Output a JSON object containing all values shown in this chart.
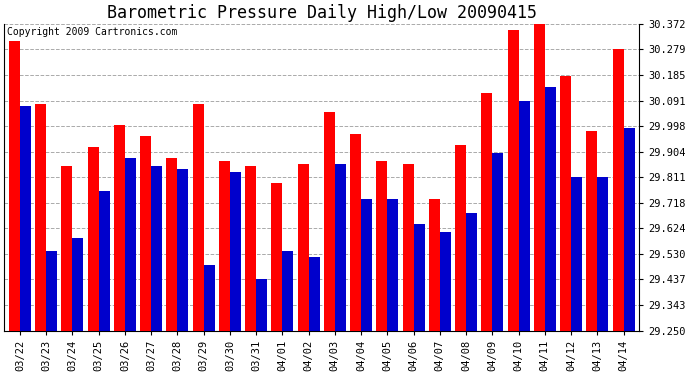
{
  "title": "Barometric Pressure Daily High/Low 20090415",
  "copyright": "Copyright 2009 Cartronics.com",
  "categories": [
    "03/22",
    "03/23",
    "03/24",
    "03/25",
    "03/26",
    "03/27",
    "03/28",
    "03/29",
    "03/30",
    "03/31",
    "04/01",
    "04/02",
    "04/03",
    "04/04",
    "04/05",
    "04/06",
    "04/07",
    "04/08",
    "04/09",
    "04/10",
    "04/11",
    "04/12",
    "04/13",
    "04/14"
  ],
  "highs": [
    30.31,
    30.08,
    29.85,
    29.92,
    30.0,
    29.96,
    29.88,
    30.08,
    29.87,
    29.85,
    29.79,
    29.86,
    30.05,
    29.97,
    29.87,
    29.86,
    29.73,
    29.93,
    30.12,
    30.35,
    30.42,
    30.18,
    29.98,
    30.28
  ],
  "lows": [
    30.07,
    29.54,
    29.59,
    29.76,
    29.88,
    29.85,
    29.84,
    29.49,
    29.83,
    29.44,
    29.54,
    29.52,
    29.86,
    29.73,
    29.73,
    29.64,
    29.61,
    29.68,
    29.9,
    30.09,
    30.14,
    29.81,
    29.81,
    29.99
  ],
  "high_color": "#FF0000",
  "low_color": "#0000CC",
  "background_color": "#FFFFFF",
  "grid_color": "#AAAAAA",
  "ymin": 29.25,
  "ymax": 30.372,
  "yticks": [
    29.25,
    29.343,
    29.437,
    29.53,
    29.624,
    29.718,
    29.811,
    29.904,
    29.998,
    30.091,
    30.185,
    30.279,
    30.372
  ],
  "title_fontsize": 12,
  "copyright_fontsize": 7,
  "tick_fontsize": 7.5,
  "bar_width": 0.42,
  "figwidth": 6.9,
  "figheight": 3.75,
  "dpi": 100
}
